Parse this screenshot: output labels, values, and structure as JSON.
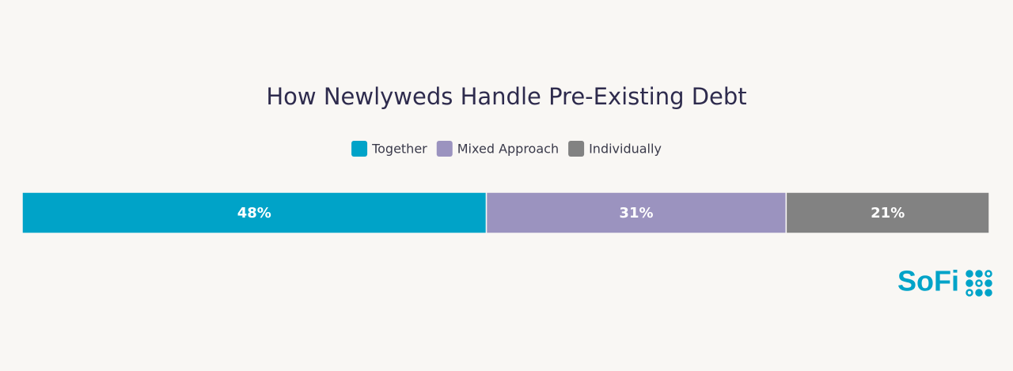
{
  "chart_data": {
    "type": "bar",
    "orientation": "horizontal",
    "stacked": true,
    "title": "How Newlyweds Handle Pre-Existing Debt",
    "categories": [
      null
    ],
    "series": [
      {
        "name": "Together",
        "color": "#00a3c8",
        "values": [
          48
        ],
        "value_labels": [
          "48%"
        ]
      },
      {
        "name": "Mixed Approach",
        "color": "#9b93bf",
        "values": [
          31
        ],
        "value_labels": [
          "31%"
        ]
      },
      {
        "name": "Individually",
        "color": "#828282",
        "values": [
          21
        ],
        "value_labels": [
          "21%"
        ]
      }
    ],
    "xlim": [
      0,
      100
    ],
    "legend": "top"
  },
  "logo": "SoFi"
}
